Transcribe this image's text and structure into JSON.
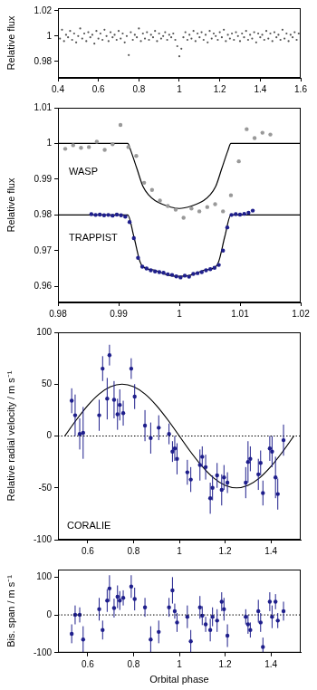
{
  "chart_data": [
    {
      "type": "scatter",
      "ylabel": "Relative flux",
      "grid": false,
      "xlim": [
        0.4,
        1.6
      ],
      "xticks": [
        0.4,
        0.6,
        0.8,
        1,
        1.2,
        1.4,
        1.6
      ],
      "ylim": [
        0.967,
        1.022
      ],
      "yticks": [
        0.98,
        1,
        1.02
      ],
      "series": [
        {
          "type": "scatter",
          "color": "#555555",
          "marker": "circle",
          "x": [
            0.4,
            0.41,
            0.42,
            0.43,
            0.44,
            0.45,
            0.46,
            0.47,
            0.48,
            0.49,
            0.5,
            0.51,
            0.52,
            0.53,
            0.54,
            0.55,
            0.56,
            0.57,
            0.58,
            0.59,
            0.6,
            0.61,
            0.62,
            0.63,
            0.64,
            0.65,
            0.66,
            0.67,
            0.68,
            0.69,
            0.7,
            0.71,
            0.72,
            0.73,
            0.74,
            0.75,
            0.76,
            0.77,
            0.78,
            0.79,
            0.8,
            0.81,
            0.82,
            0.83,
            0.84,
            0.85,
            0.86,
            0.87,
            0.88,
            0.89,
            0.9,
            0.91,
            0.92,
            0.93,
            0.94,
            0.95,
            0.96,
            0.97,
            0.98,
            0.99,
            1,
            1.01,
            1.02,
            1.03,
            1.04,
            1.05,
            1.06,
            1.07,
            1.08,
            1.09,
            1.1,
            1.11,
            1.12,
            1.13,
            1.14,
            1.15,
            1.16,
            1.17,
            1.18,
            1.19,
            1.2,
            1.21,
            1.22,
            1.23,
            1.24,
            1.25,
            1.26,
            1.27,
            1.28,
            1.29,
            1.3,
            1.31,
            1.32,
            1.33,
            1.34,
            1.35,
            1.36,
            1.37,
            1.38,
            1.39,
            1.4,
            1.41,
            1.42,
            1.43,
            1.44,
            1.45,
            1.46,
            1.47,
            1.48,
            1.49,
            1.5,
            1.51,
            1.52,
            1.53,
            1.54,
            1.55,
            1.56,
            1.57,
            1.58,
            1.59,
            1.6
          ],
          "values": [
            1.003,
            0.998,
            1.005,
            0.996,
            1.001,
            0.999,
            1.004,
            0.997,
            1.002,
            0.995,
            1.0,
            1.006,
            0.998,
            1.002,
            0.996,
            1.003,
            0.999,
            1.001,
            0.994,
            1.004,
            0.998,
            1.002,
            0.997,
            1.005,
            1.0,
            0.996,
            1.003,
            0.999,
            1.001,
            0.997,
            1.004,
            0.998,
            1.002,
            0.995,
            1.0,
            0.985,
            1.003,
            0.997,
            1.001,
            0.999,
            1.006,
            0.996,
            1.002,
            0.998,
            1.003,
            0.997,
            1.001,
            0.999,
            1.004,
            0.996,
            1.002,
            0.998,
            1.0,
            1.003,
            0.997,
            1.001,
            0.999,
            1.002,
            0.997,
            0.992,
            0.984,
            0.99,
            0.999,
            1.003,
            0.997,
            1.001,
            0.998,
            1.004,
            0.996,
            1.002,
            0.999,
            1.003,
            0.997,
            1.001,
            0.995,
            1.004,
            0.998,
            1.002,
            1.0,
            0.997,
            1.003,
            0.999,
            1.005,
            0.996,
            1.001,
            0.998,
            1.002,
            0.997,
            1.003,
            1.0,
            0.996,
            1.002,
            0.999,
            1.004,
            0.997,
            1.001,
            0.998,
            1.003,
            0.995,
            1.002,
            0.999,
            1.001,
            0.997,
            1.004,
            0.998,
            1.002,
            0.996,
            1.003,
            0.999,
            1.001,
            0.997,
            1.005,
            0.998,
            1.002,
            0.996,
            1.001,
            0.999,
            1.003,
            0.997,
            1.002,
            0.999
          ]
        }
      ]
    },
    {
      "type": "scatter",
      "ylabel": "Relative flux",
      "grid": false,
      "xlim": [
        0.98,
        1.02
      ],
      "xticks": [
        0.98,
        0.99,
        1,
        1.01,
        1.02
      ],
      "ylim": [
        0.9555,
        1.01
      ],
      "yticks": [
        0.96,
        0.97,
        0.98,
        0.99,
        1,
        1.01
      ],
      "series": [
        {
          "name": "WASP",
          "type": "scatter",
          "color": "#999999",
          "marker": "circle",
          "x": [
            0.9812,
            0.9825,
            0.9838,
            0.9851,
            0.9864,
            0.9877,
            0.989,
            0.9903,
            0.9916,
            0.9929,
            0.9942,
            0.9955,
            0.9968,
            0.9981,
            0.9994,
            1.0007,
            1.002,
            1.0033,
            1.0046,
            1.0059,
            1.0072,
            1.0085,
            1.0098,
            1.0111,
            1.0124,
            1.0137,
            1.015
          ],
          "values": [
            0.9985,
            0.9995,
            0.9988,
            0.999,
            1.0005,
            0.9982,
            0.9998,
            1.0052,
            0.999,
            0.9965,
            0.989,
            0.987,
            0.984,
            0.9825,
            0.9815,
            0.9792,
            0.9818,
            0.981,
            0.9822,
            0.983,
            0.981,
            0.9855,
            0.995,
            1.004,
            1.0015,
            1.003,
            1.0025
          ]
        },
        {
          "type": "line",
          "color": "#000000",
          "line_style": "solid",
          "x": [
            0.98,
            0.9915,
            0.992,
            0.993,
            0.994,
            0.995,
            0.996,
            0.998,
            1,
            1.002,
            1.004,
            1.005,
            1.006,
            1.007,
            1.008,
            1.0085,
            1.02
          ],
          "values": [
            1,
            1,
            0.998,
            0.993,
            0.988,
            0.9855,
            0.984,
            0.9825,
            0.9818,
            0.9825,
            0.984,
            0.9855,
            0.988,
            0.993,
            0.998,
            1,
            1
          ]
        },
        {
          "name": "TRAPPIST",
          "type": "scatter",
          "color": "#1f1f8c",
          "marker": "circle",
          "x": [
            0.9855,
            0.9862,
            0.9869,
            0.9876,
            0.9883,
            0.989,
            0.9897,
            0.9904,
            0.9911,
            0.9918,
            0.9925,
            0.9932,
            0.9939,
            0.9946,
            0.9953,
            0.996,
            0.9967,
            0.9974,
            0.9981,
            0.9988,
            0.9995,
            1.0002,
            1.0009,
            1.0016,
            1.0023,
            1.003,
            1.0037,
            1.0044,
            1.0051,
            1.0058,
            1.0065,
            1.0072,
            1.0079,
            1.0086,
            1.0093,
            1.01,
            1.0107,
            1.0114,
            1.0121
          ],
          "values": [
            0.9802,
            0.98,
            0.9801,
            0.9799,
            0.98,
            0.9798,
            0.9801,
            0.9799,
            0.9795,
            0.978,
            0.9735,
            0.968,
            0.9655,
            0.965,
            0.9645,
            0.9642,
            0.964,
            0.9638,
            0.9634,
            0.9632,
            0.9628,
            0.9625,
            0.963,
            0.9627,
            0.9635,
            0.9637,
            0.964,
            0.9645,
            0.9648,
            0.9652,
            0.966,
            0.97,
            0.9765,
            0.98,
            0.9802,
            0.9801,
            0.9803,
            0.9806,
            0.9812
          ]
        },
        {
          "type": "line",
          "color": "#000000",
          "line_style": "solid",
          "x": [
            0.98,
            0.9915,
            0.9925,
            0.9935,
            0.994,
            0.996,
            0.998,
            1,
            1.002,
            1.004,
            1.006,
            1.0065,
            1.0075,
            1.0085,
            1.02
          ],
          "values": [
            0.98,
            0.98,
            0.974,
            0.967,
            0.9655,
            0.9645,
            0.9632,
            0.9628,
            0.9632,
            0.9645,
            0.9655,
            0.967,
            0.974,
            0.98,
            0.98
          ]
        }
      ]
    },
    {
      "type": "scatter",
      "ylabel": "Relative radial velocity / m s⁻¹",
      "annotation": "CORALIE",
      "grid": false,
      "xlim": [
        0.47,
        1.53
      ],
      "xticks": [
        0.6,
        0.8,
        1,
        1.2,
        1.4
      ],
      "ylim": [
        -100,
        100
      ],
      "yticks": [
        -100,
        -50,
        0,
        50,
        100
      ],
      "reference_lines": [
        {
          "value": 0,
          "line_style": "dotted"
        }
      ],
      "series": [
        {
          "type": "line",
          "color": "#000000",
          "line_style": "solid",
          "x": [
            0.5,
            0.55,
            0.6,
            0.65,
            0.7,
            0.75,
            0.8,
            0.85,
            0.9,
            0.95,
            1,
            1.05,
            1.1,
            1.15,
            1.2,
            1.25,
            1.3,
            1.35,
            1.4,
            1.45,
            1.5
          ],
          "values": [
            0,
            15.5,
            29.4,
            40.5,
            47.6,
            50,
            47.6,
            40.5,
            29.4,
            15.5,
            0,
            -15.5,
            -29.4,
            -40.5,
            -47.6,
            -50,
            -47.6,
            -40.5,
            -29.4,
            -15.5,
            0
          ]
        },
        {
          "type": "scatter",
          "color": "#1f1f8c",
          "marker": "circle",
          "x": [
            0.53,
            0.545,
            0.565,
            0.58,
            0.65,
            0.665,
            0.685,
            0.695,
            0.715,
            0.73,
            0.74,
            0.755,
            0.79,
            0.805,
            0.85,
            0.875,
            0.91,
            0.955,
            0.97,
            0.98,
            0.99,
            1.035,
            1.05,
            1.09,
            1.1,
            1.115,
            1.135,
            1.145,
            1.165,
            1.185,
            1.195,
            1.21,
            1.29,
            1.3,
            1.31,
            1.345,
            1.355,
            1.365,
            1.395,
            1.405,
            1.42,
            1.43,
            1.455
          ],
          "values": [
            34,
            20,
            2,
            3,
            20,
            65,
            36,
            78,
            35,
            21,
            30,
            22,
            65,
            38,
            10,
            -2,
            8,
            2,
            -15,
            -12,
            -22,
            -35,
            -42,
            -28,
            -20,
            -30,
            -60,
            -50,
            -38,
            -52,
            -40,
            -45,
            -45,
            -25,
            -22,
            -37,
            -26,
            -55,
            -12,
            -15,
            -40,
            -56,
            -4
          ],
          "errors": [
            12,
            20,
            15,
            25,
            15,
            12,
            20,
            10,
            18,
            15,
            15,
            12,
            10,
            12,
            15,
            15,
            12,
            10,
            10,
            12,
            15,
            12,
            12,
            15,
            10,
            12,
            15,
            12,
            12,
            15,
            12,
            10,
            15,
            20,
            12,
            15,
            12,
            12,
            12,
            15,
            20,
            15,
            15
          ]
        }
      ]
    },
    {
      "type": "scatter",
      "xlabel": "Orbital phase",
      "ylabel": "Bis. span / m s⁻¹",
      "grid": false,
      "xlim": [
        0.47,
        1.53
      ],
      "xticks": [
        0.6,
        0.8,
        1,
        1.2,
        1.4
      ],
      "ylim": [
        -100,
        120
      ],
      "yticks": [
        -100,
        0,
        100
      ],
      "reference_lines": [
        {
          "value": 0,
          "line_style": "dotted"
        }
      ],
      "series": [
        {
          "type": "scatter",
          "color": "#1f1f8c",
          "marker": "circle",
          "x": [
            0.53,
            0.545,
            0.565,
            0.58,
            0.65,
            0.665,
            0.685,
            0.695,
            0.715,
            0.73,
            0.74,
            0.755,
            0.79,
            0.805,
            0.85,
            0.875,
            0.91,
            0.955,
            0.97,
            0.98,
            0.99,
            1.035,
            1.05,
            1.09,
            1.1,
            1.115,
            1.135,
            1.145,
            1.165,
            1.185,
            1.195,
            1.21,
            1.29,
            1.3,
            1.31,
            1.345,
            1.355,
            1.365,
            1.395,
            1.405,
            1.42,
            1.43,
            1.455
          ],
          "values": [
            -50,
            0,
            0,
            -65,
            15,
            -40,
            38,
            70,
            18,
            48,
            38,
            45,
            75,
            42,
            20,
            -65,
            -45,
            20,
            65,
            10,
            -20,
            -5,
            -70,
            20,
            -2,
            -25,
            -40,
            -5,
            -15,
            35,
            15,
            -55,
            -5,
            -25,
            -40,
            10,
            -20,
            -85,
            35,
            -5,
            35,
            -15,
            10
          ],
          "errors": [
            25,
            25,
            20,
            35,
            30,
            25,
            30,
            35,
            25,
            30,
            25,
            20,
            30,
            30,
            25,
            35,
            30,
            25,
            35,
            20,
            25,
            30,
            30,
            30,
            25,
            20,
            30,
            25,
            30,
            25,
            30,
            30,
            20,
            25,
            20,
            30,
            25,
            25,
            25,
            30,
            20,
            20,
            25
          ]
        }
      ]
    }
  ]
}
